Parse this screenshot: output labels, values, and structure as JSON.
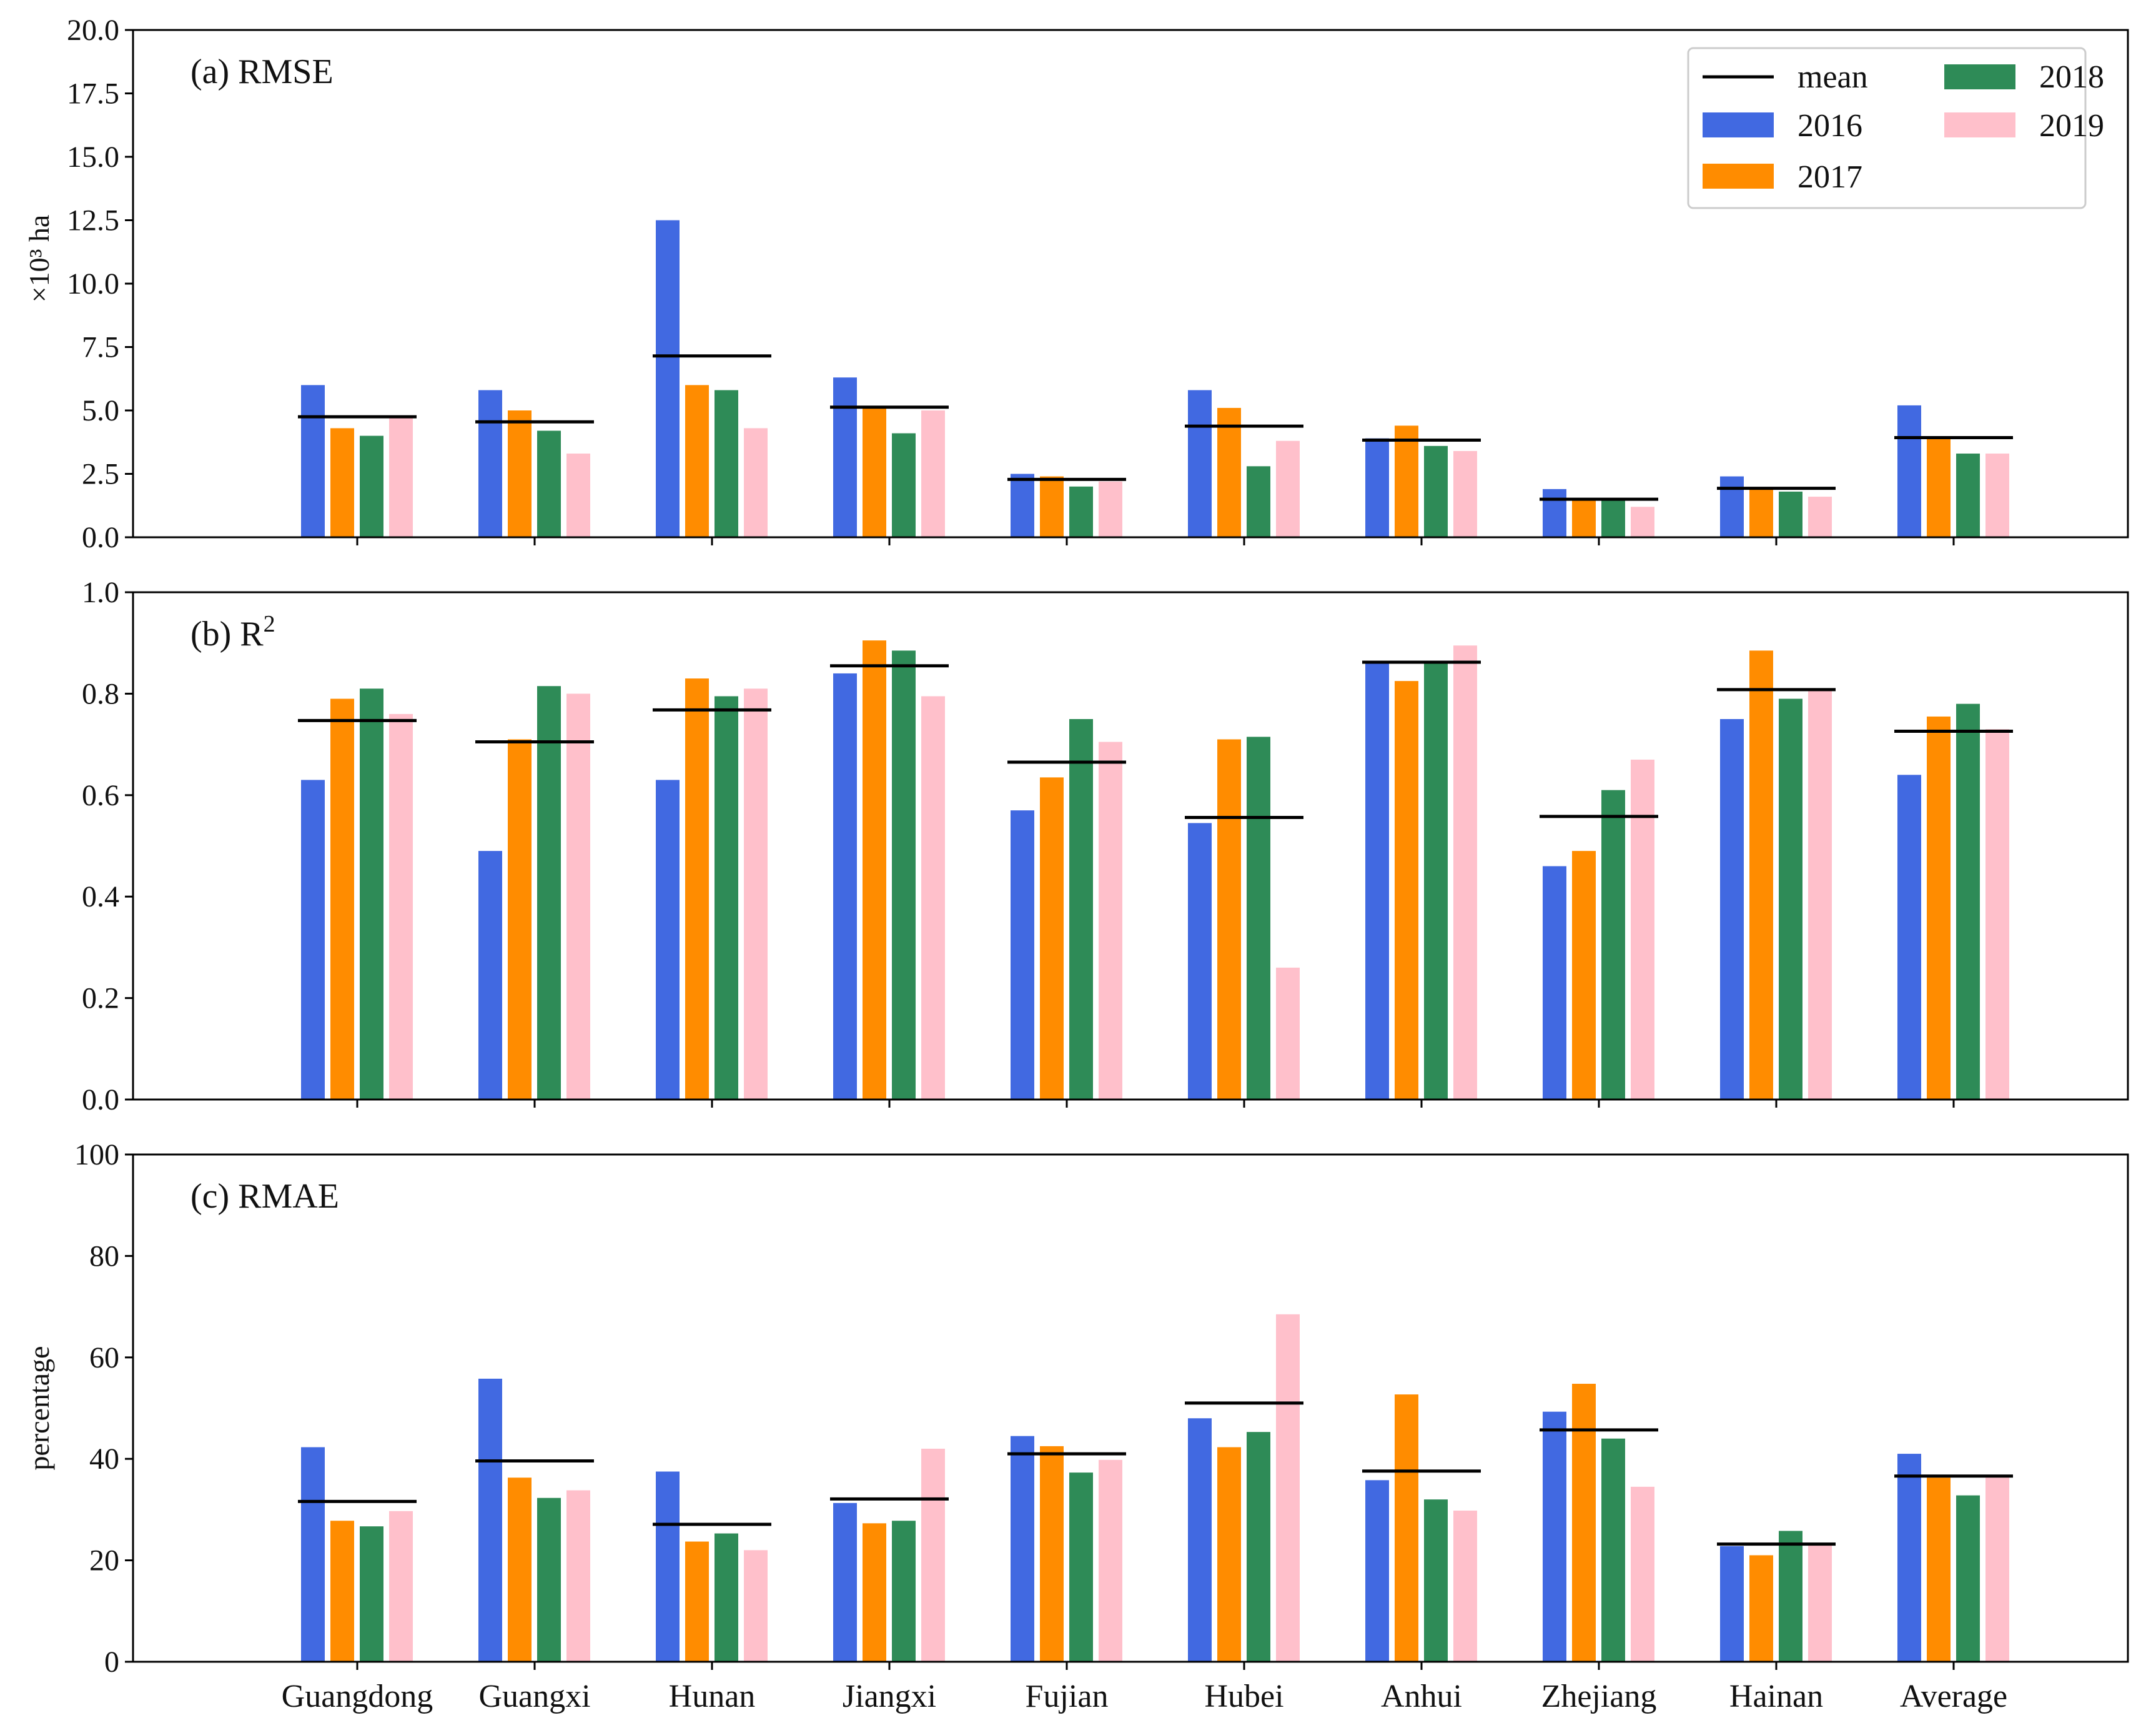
{
  "chart_data": [
    {
      "id": "rmse",
      "type": "bar",
      "title": "(a) RMSE",
      "title_base": "(a) RMSE",
      "title_sup": "",
      "xlabel": "",
      "ylabel": "×10³ ha",
      "ylim": [
        0,
        20
      ],
      "yticks": [
        0.0,
        2.5,
        5.0,
        7.5,
        10.0,
        12.5,
        15.0,
        17.5,
        20.0
      ],
      "ytick_labels": [
        "0.0",
        "2.5",
        "5.0",
        "7.5",
        "10.0",
        "12.5",
        "15.0",
        "17.5",
        "20.0"
      ],
      "categories": [
        "Guangdong",
        "Guangxi",
        "Hunan",
        "Jiangxi",
        "Fujian",
        "Hubei",
        "Anhui",
        "Zhejiang",
        "Hainan",
        "Average"
      ],
      "series": [
        {
          "name": "2016",
          "values": [
            6.0,
            5.8,
            12.5,
            6.3,
            2.5,
            5.8,
            3.9,
            1.9,
            2.4,
            5.2
          ]
        },
        {
          "name": "2017",
          "values": [
            4.3,
            5.0,
            6.0,
            5.1,
            2.4,
            5.1,
            4.4,
            1.5,
            1.9,
            3.9
          ]
        },
        {
          "name": "2018",
          "values": [
            4.0,
            4.2,
            5.8,
            4.1,
            2.0,
            2.8,
            3.6,
            1.5,
            1.8,
            3.3
          ]
        },
        {
          "name": "2019",
          "values": [
            4.8,
            3.3,
            4.3,
            5.0,
            2.2,
            3.8,
            3.4,
            1.2,
            1.6,
            3.3
          ]
        }
      ],
      "mean": [
        4.75,
        4.55,
        7.15,
        5.13,
        2.28,
        4.38,
        3.83,
        1.5,
        1.93,
        3.93
      ],
      "legend": true
    },
    {
      "id": "r2",
      "type": "bar",
      "title": "(b) R2",
      "title_base": "(b) R",
      "title_sup": "2",
      "xlabel": "",
      "ylabel": "",
      "ylim": [
        0,
        1
      ],
      "yticks": [
        0.0,
        0.2,
        0.4,
        0.6,
        0.8,
        1.0
      ],
      "ytick_labels": [
        "0.0",
        "0.2",
        "0.4",
        "0.6",
        "0.8",
        "1.0"
      ],
      "categories": [
        "Guangdong",
        "Guangxi",
        "Hunan",
        "Jiangxi",
        "Fujian",
        "Hubei",
        "Anhui",
        "Zhejiang",
        "Hainan",
        "Average"
      ],
      "series": [
        {
          "name": "2016",
          "values": [
            0.63,
            0.49,
            0.63,
            0.84,
            0.57,
            0.545,
            0.86,
            0.46,
            0.75,
            0.64
          ]
        },
        {
          "name": "2017",
          "values": [
            0.79,
            0.71,
            0.83,
            0.905,
            0.635,
            0.71,
            0.825,
            0.49,
            0.885,
            0.755
          ]
        },
        {
          "name": "2018",
          "values": [
            0.81,
            0.815,
            0.795,
            0.885,
            0.75,
            0.715,
            0.865,
            0.61,
            0.79,
            0.78
          ]
        },
        {
          "name": "2019",
          "values": [
            0.76,
            0.8,
            0.81,
            0.795,
            0.705,
            0.26,
            0.895,
            0.67,
            0.81,
            0.73
          ]
        }
      ],
      "mean": [
        0.747,
        0.705,
        0.768,
        0.855,
        0.665,
        0.556,
        0.862,
        0.558,
        0.808,
        0.726
      ],
      "legend": false
    },
    {
      "id": "rmae",
      "type": "bar",
      "title": "(c) RMAE",
      "title_base": "(c) RMAE",
      "title_sup": "",
      "xlabel": "",
      "ylabel": "percentage",
      "ylim": [
        0,
        100
      ],
      "yticks": [
        0,
        20,
        40,
        60,
        80,
        100
      ],
      "ytick_labels": [
        "0",
        "20",
        "40",
        "60",
        "80",
        "100"
      ],
      "categories": [
        "Guangdong",
        "Guangxi",
        "Hunan",
        "Jiangxi",
        "Fujian",
        "Hubei",
        "Anhui",
        "Zhejiang",
        "Hainan",
        "Average"
      ],
      "series": [
        {
          "name": "2016",
          "values": [
            42.3,
            55.8,
            37.5,
            31.3,
            44.5,
            48.0,
            35.8,
            49.3,
            22.8,
            41.0
          ]
        },
        {
          "name": "2017",
          "values": [
            27.8,
            36.3,
            23.7,
            27.3,
            42.5,
            42.3,
            52.7,
            54.8,
            21.0,
            36.3
          ]
        },
        {
          "name": "2018",
          "values": [
            26.7,
            32.3,
            25.3,
            27.8,
            37.3,
            45.3,
            32.0,
            44.0,
            25.8,
            32.8
          ]
        },
        {
          "name": "2019",
          "values": [
            29.7,
            33.8,
            22.0,
            42.0,
            39.8,
            68.5,
            29.8,
            34.5,
            23.2,
            36.3
          ]
        }
      ],
      "mean": [
        31.6,
        39.6,
        27.1,
        32.1,
        41.0,
        51.0,
        37.6,
        45.7,
        23.2,
        36.6
      ],
      "legend": false
    }
  ],
  "legend": {
    "mean_label": "mean",
    "entries": [
      {
        "label": "2016",
        "color": "#4169e1"
      },
      {
        "label": "2017",
        "color": "#ff8c00"
      },
      {
        "label": "2018",
        "color": "#2e8b57"
      },
      {
        "label": "2019",
        "color": "#ffc0cb"
      }
    ]
  },
  "colors": {
    "2016": "#4169e1",
    "2017": "#ff8c00",
    "2018": "#2e8b57",
    "2019": "#ffc0cb",
    "mean": "#000000",
    "axis": "#000000"
  }
}
